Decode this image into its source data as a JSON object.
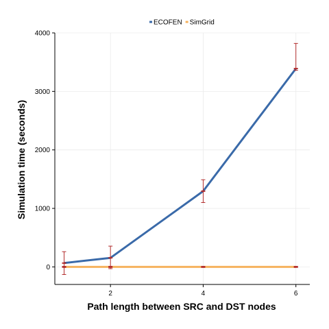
{
  "chart_data": {
    "type": "line",
    "title": "",
    "xlabel": "Path length between SRC and DST nodes",
    "ylabel": "Simulation time (seconds)",
    "x": [
      1,
      2,
      4,
      6
    ],
    "xlim": [
      0.8,
      6.3
    ],
    "ylim": [
      -300,
      4000
    ],
    "xticks": [
      2,
      4,
      6
    ],
    "yticks": [
      0,
      1000,
      2000,
      3000,
      4000
    ],
    "grid": true,
    "legend_position": "top-center",
    "series": [
      {
        "name": "ECOFEN",
        "color": "#3a6aa9",
        "values": [
          65,
          155,
          1295,
          3390
        ],
        "error_low": [
          -130,
          -30,
          1100,
          3360
        ],
        "error_high": [
          260,
          355,
          1490,
          3820
        ]
      },
      {
        "name": "SimGrid",
        "color": "#f6b25e",
        "values": [
          0,
          0,
          0,
          0
        ],
        "error_low": [
          -10,
          -10,
          -10,
          -10
        ],
        "error_high": [
          10,
          10,
          10,
          10
        ]
      }
    ],
    "error_bar_color": "#b22c2c"
  }
}
